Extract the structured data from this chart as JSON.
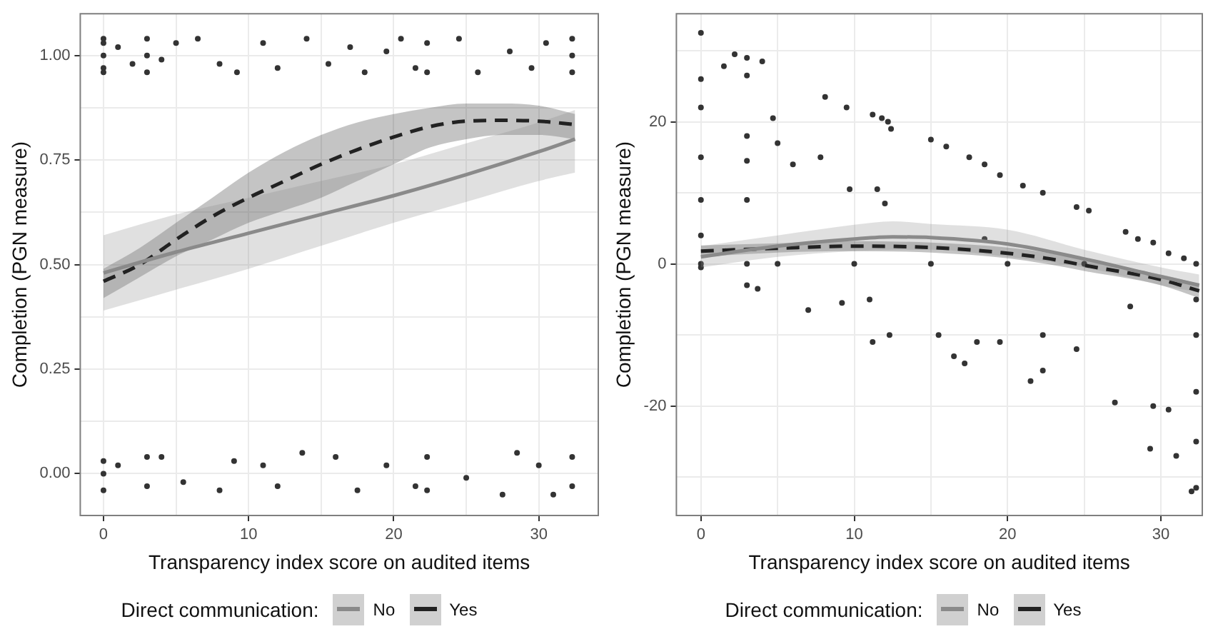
{
  "chart_data": [
    {
      "type": "scatter",
      "xlabel": "Transparency index score on audited items",
      "ylabel": "Completion (PGN measure)",
      "legend_title": "Direct communication:",
      "legend": "bottom",
      "grid": true,
      "xlim": [
        -1.6,
        34.1
      ],
      "xticks": [
        0,
        {
          "value": 5,
          "label": null
        },
        10,
        {
          "value": 15,
          "label": null
        },
        20,
        {
          "value": 25,
          "label": null
        },
        30
      ],
      "ylim": [
        -0.1,
        1.1
      ],
      "yticks": [
        {
          "value": 0,
          "label": "0.00"
        },
        {
          "value": 0.125,
          "label": null
        },
        {
          "value": 0.25,
          "label": "0.25"
        },
        {
          "value": 0.375,
          "label": null
        },
        {
          "value": 0.5,
          "label": "0.50"
        },
        {
          "value": 0.625,
          "label": null
        },
        {
          "value": 0.75,
          "label": "0.75"
        },
        {
          "value": 0.875,
          "label": null
        },
        {
          "value": 1,
          "label": "1.00"
        }
      ],
      "series": [
        {
          "color": "#333333",
          "marker": "circle",
          "x": [
            0,
            0,
            0,
            0,
            0,
            1,
            2,
            3,
            3,
            3,
            4,
            5,
            6.5,
            8,
            9.2,
            11,
            12,
            14,
            15.5,
            17,
            18,
            19.5,
            20.5,
            21.5,
            22.3,
            22.3,
            24.5,
            25.8,
            28,
            29.5,
            30.5,
            32.3,
            32.3,
            32.3,
            0,
            0,
            0,
            1,
            3,
            3,
            4,
            5.5,
            8,
            9,
            11,
            12,
            13.7,
            16,
            17.5,
            19.5,
            21.5,
            22.3,
            22.3,
            25,
            27.5,
            28.5,
            30,
            31,
            32.3,
            32.3
          ],
          "values": [
            1.03,
            0.97,
            1.0,
            0.96,
            1.04,
            1.02,
            0.98,
            1.04,
            0.96,
            1.0,
            0.99,
            1.03,
            1.04,
            0.98,
            0.96,
            1.03,
            0.97,
            1.04,
            0.98,
            1.02,
            0.96,
            1.01,
            1.04,
            0.97,
            1.03,
            0.96,
            1.04,
            0.96,
            1.01,
            0.97,
            1.03,
            1.04,
            0.96,
            1.0,
            0.03,
            -0.04,
            0.0,
            0.02,
            0.04,
            -0.03,
            0.04,
            -0.02,
            -0.04,
            0.03,
            0.02,
            -0.03,
            0.05,
            0.04,
            -0.04,
            0.02,
            -0.03,
            0.04,
            -0.04,
            -0.01,
            -0.05,
            0.05,
            0.02,
            -0.05,
            0.04,
            -0.03
          ]
        },
        {
          "type": "line",
          "name": "No",
          "color": "#8a8a8a",
          "marker": "none",
          "line_style": "solid",
          "x": [
            0,
            5,
            10,
            15,
            20,
            25,
            30,
            32.5
          ],
          "values": [
            0.48,
            0.53,
            0.575,
            0.62,
            0.665,
            0.715,
            0.77,
            0.8
          ],
          "lower": [
            0.39,
            0.44,
            0.49,
            0.545,
            0.6,
            0.65,
            0.7,
            0.72
          ],
          "upper": [
            0.57,
            0.62,
            0.66,
            0.7,
            0.74,
            0.79,
            0.84,
            0.87
          ]
        },
        {
          "type": "line",
          "name": "Yes",
          "color": "#222222",
          "marker": "none",
          "line_style": "dashed",
          "x": [
            0,
            2.5,
            5,
            7.5,
            10,
            12.5,
            15,
            17.5,
            20,
            22.5,
            25,
            27.5,
            30,
            32.5
          ],
          "values": [
            0.46,
            0.5,
            0.56,
            0.615,
            0.66,
            0.7,
            0.74,
            0.775,
            0.805,
            0.83,
            0.843,
            0.845,
            0.843,
            0.835
          ],
          "lower": [
            0.42,
            0.47,
            0.52,
            0.56,
            0.6,
            0.63,
            0.66,
            0.7,
            0.74,
            0.78,
            0.8,
            0.81,
            0.81,
            0.8
          ],
          "upper": [
            0.49,
            0.54,
            0.6,
            0.66,
            0.72,
            0.77,
            0.81,
            0.84,
            0.86,
            0.875,
            0.885,
            0.885,
            0.88,
            0.86
          ]
        }
      ]
    },
    {
      "type": "scatter",
      "xlabel": "Transparency index score on audited items",
      "ylabel": "Completion (PGN measure)",
      "legend_title": "Direct communication:",
      "legend": "bottom",
      "grid": true,
      "xlim": [
        -1.6,
        32.7
      ],
      "xticks": [
        0,
        {
          "value": 5,
          "label": null
        },
        10,
        {
          "value": 15,
          "label": null
        },
        20,
        {
          "value": 25,
          "label": null
        },
        30
      ],
      "ylim": [
        -35.4,
        35.2
      ],
      "yticks": [
        {
          "value": -30,
          "label": null
        },
        -20,
        {
          "value": -10,
          "label": null
        },
        0,
        {
          "value": 10,
          "label": null
        },
        20,
        {
          "value": 30,
          "label": null
        }
      ],
      "series": [
        {
          "color": "#333333",
          "marker": "circle",
          "x": [
            0,
            0,
            0,
            0,
            0,
            0,
            0,
            0,
            1.5,
            2.2,
            3,
            3,
            3,
            3,
            3,
            3,
            3,
            4,
            3.7,
            4.7,
            5,
            6,
            7.8,
            8.1,
            9.5,
            9.7,
            11.2,
            11.8,
            12.2,
            12.4,
            11.5,
            12,
            11,
            11.2,
            12.3,
            15,
            16,
            17.5,
            18.5,
            19.5,
            21,
            22.3,
            16.5,
            17.2,
            18,
            19.5,
            21.5,
            22.3,
            22.3,
            24.5,
            25.3,
            24.5,
            27.7,
            28.5,
            29.5,
            30.5,
            31.5,
            27,
            29.5,
            29.3,
            30.5,
            31,
            32,
            32.3,
            32.3,
            32.3,
            32.3,
            32.3,
            32.3,
            5,
            10,
            15,
            20,
            25,
            7,
            15.5,
            9.2,
            18.5,
            28
          ],
          "values": [
            32.5,
            26,
            22,
            15,
            9,
            4,
            0,
            -0.5,
            27.8,
            29.5,
            29,
            26.5,
            18,
            14.5,
            9,
            0,
            -3,
            28.5,
            -3.5,
            20.5,
            17,
            14,
            15,
            23.5,
            22,
            10.5,
            21,
            20.5,
            20,
            19,
            10.5,
            8.5,
            -5,
            -11,
            -10,
            17.5,
            16.5,
            15,
            14,
            12.5,
            11,
            10,
            -13,
            -14,
            -11,
            -11,
            -16.5,
            -15,
            -10,
            8,
            7.5,
            -12,
            4.5,
            3.5,
            3,
            1.5,
            0.8,
            -19.5,
            -20,
            -26,
            -20.5,
            -27,
            -32,
            -31.5,
            -25,
            -18,
            -10,
            -5,
            0,
            0,
            0,
            0,
            0,
            0,
            -6.5,
            -10,
            -5.5,
            3.5,
            -6
          ]
        },
        {
          "type": "line",
          "name": "No",
          "color": "#8a8a8a",
          "marker": "none",
          "line_style": "solid",
          "x": [
            0,
            5,
            10,
            12.5,
            15,
            20,
            25,
            30,
            32.5
          ],
          "values": [
            1,
            2.5,
            3.5,
            3.8,
            3.7,
            2.8,
            0.7,
            -1.8,
            -3
          ],
          "lower": [
            -0.5,
            1,
            1.8,
            2,
            2,
            1,
            -0.5,
            -3,
            -4
          ],
          "upper": [
            2.5,
            4,
            5.5,
            6,
            5.6,
            4.8,
            2,
            -0.5,
            -1.5
          ]
        },
        {
          "type": "line",
          "name": "Yes",
          "color": "#222222",
          "marker": "none",
          "line_style": "dashed",
          "x": [
            0,
            5,
            10,
            15,
            20,
            22.5,
            25,
            30,
            32.5
          ],
          "values": [
            1.8,
            2.2,
            2.5,
            2.3,
            1.5,
            0.8,
            -0.2,
            -2.2,
            -3.8
          ],
          "lower": [
            1,
            1.6,
            1.8,
            1.6,
            0.8,
            0,
            -1,
            -3,
            -4.8
          ],
          "upper": [
            2.6,
            2.9,
            3.2,
            3,
            2.3,
            1.6,
            0.6,
            -1.5,
            -2.8
          ]
        }
      ]
    }
  ]
}
